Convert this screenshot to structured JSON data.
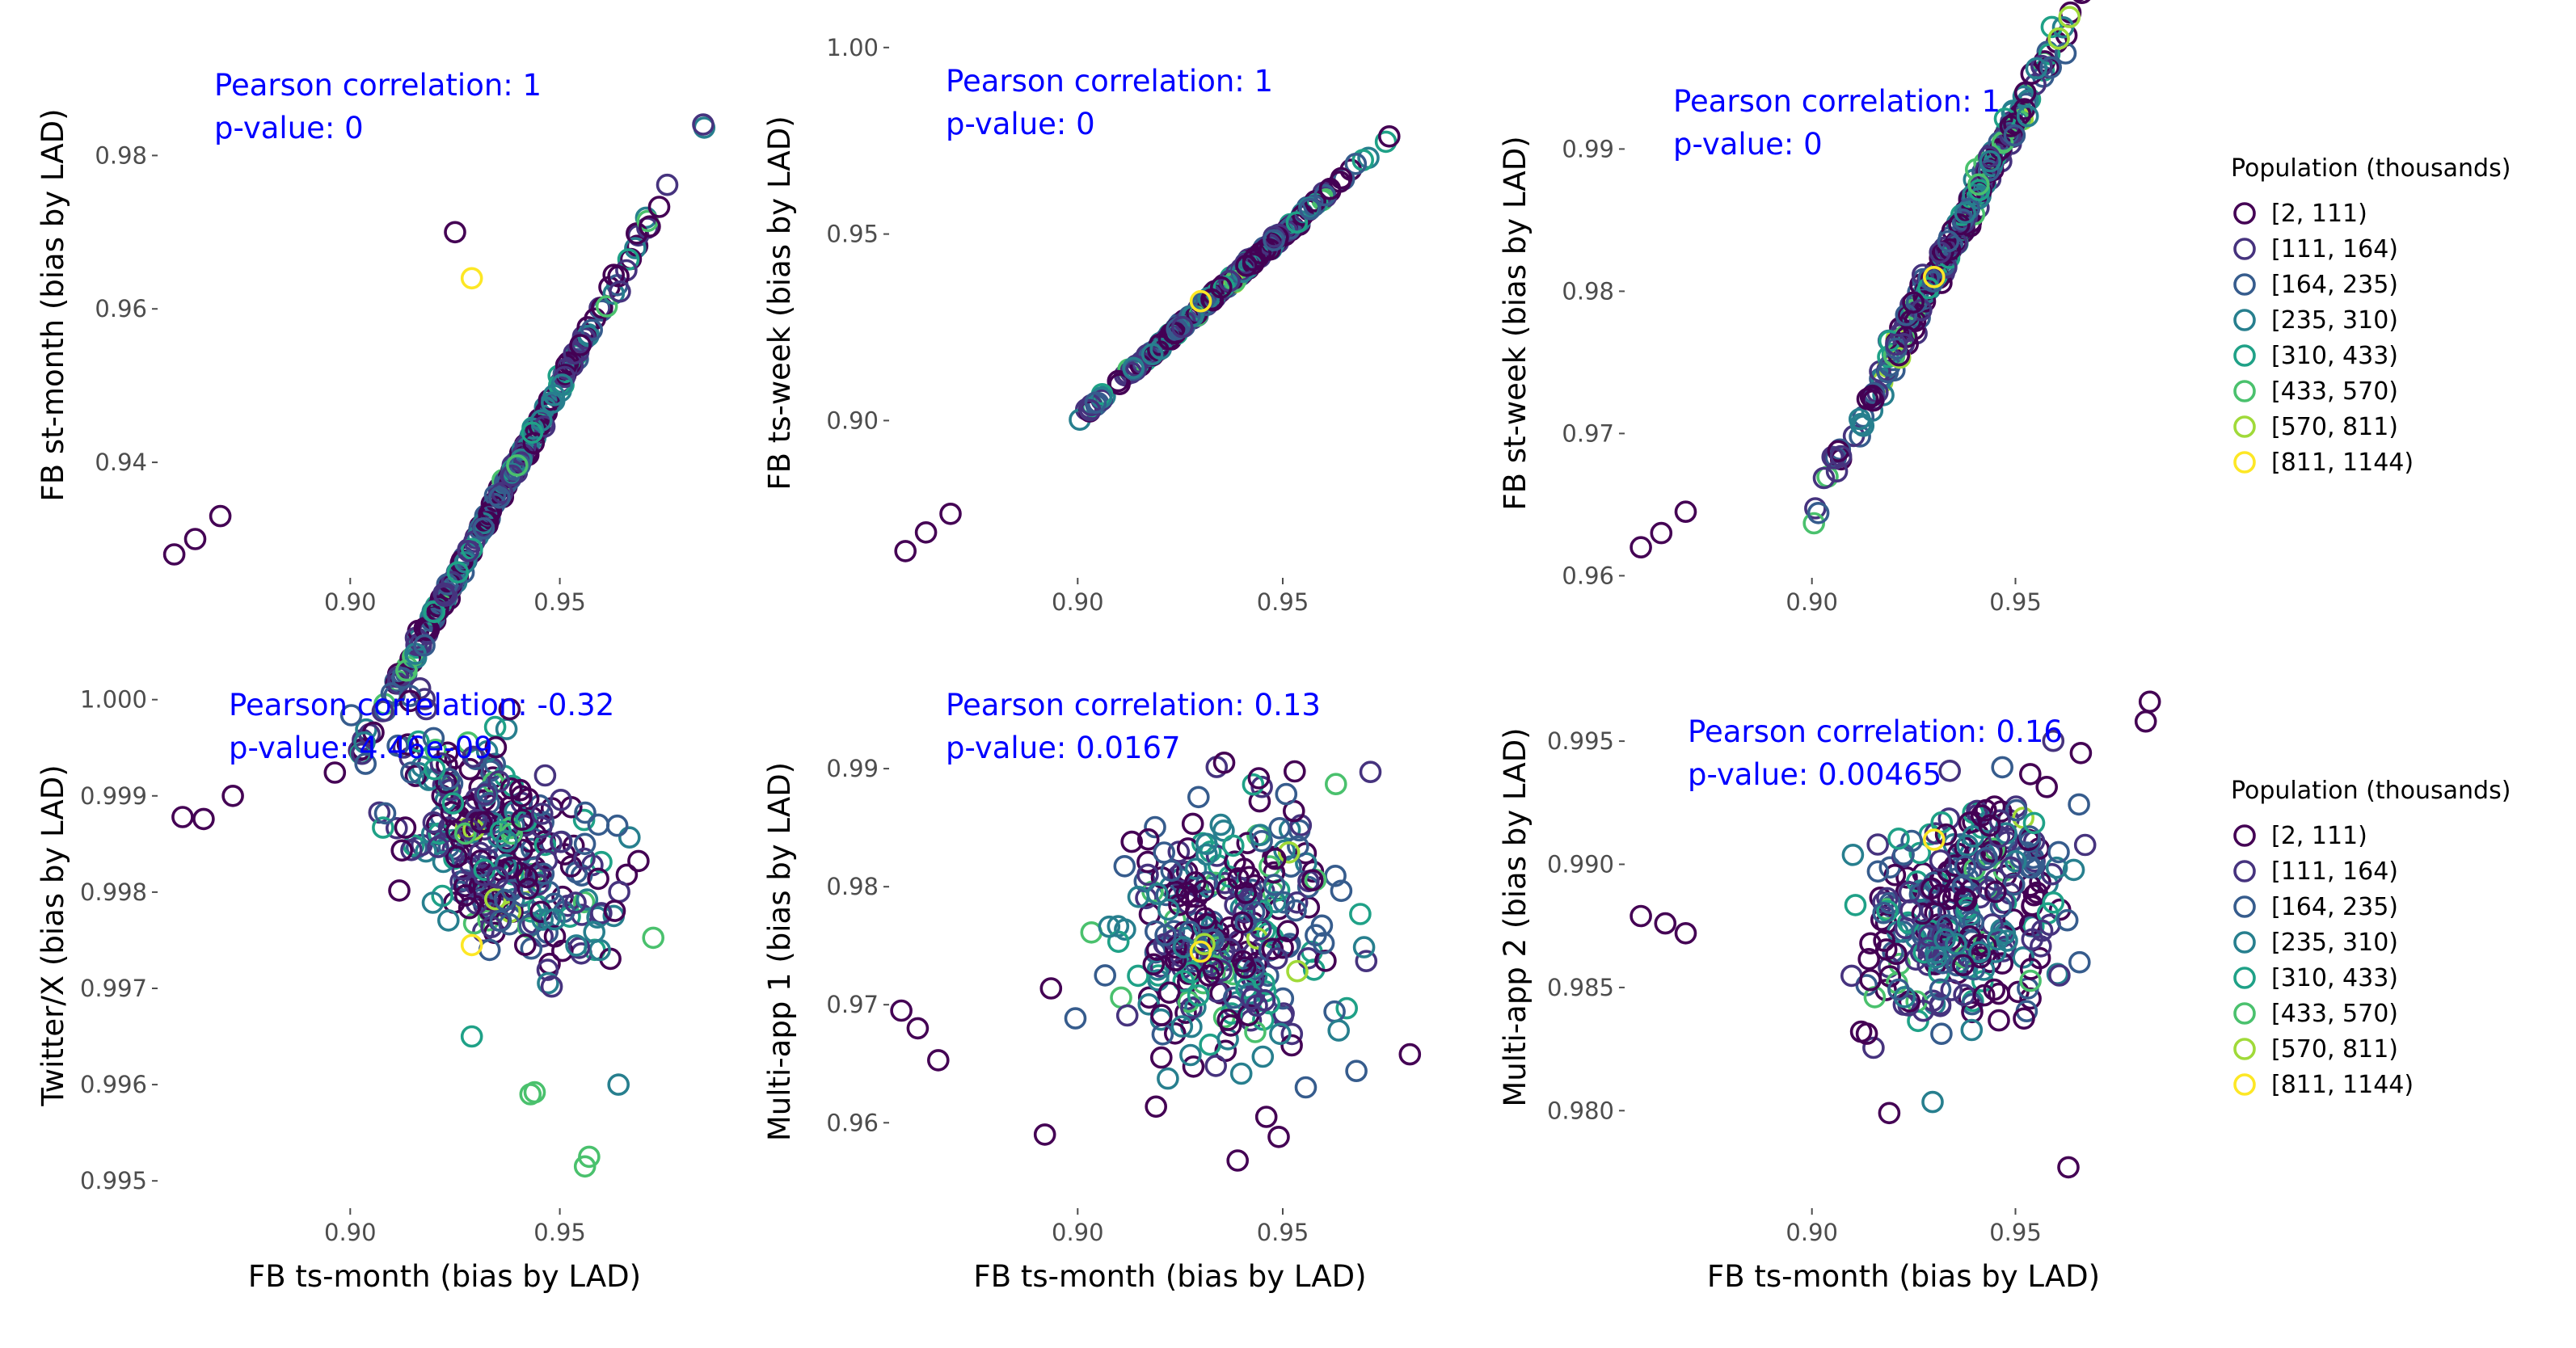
{
  "palette": [
    "#440154",
    "#46337e",
    "#365c8d",
    "#277f8e",
    "#1fa187",
    "#4ac16d",
    "#a0da39",
    "#fde725"
  ],
  "legends": [
    {
      "title": "Population (thousands)",
      "items": [
        "[2, 111)",
        "[111, 164)",
        "[164, 235)",
        "[235, 310)",
        "[310, 433)",
        "[433, 570)",
        "[570, 811)",
        "[811, 1144)"
      ]
    },
    {
      "title": "Population (thousands)",
      "items": [
        "[2, 111)",
        "[111, 164)",
        "[164, 235)",
        "[235, 310)",
        "[310, 433)",
        "[433, 570)",
        "[570, 811)",
        "[811, 1144)"
      ]
    }
  ],
  "chart_data": [
    {
      "type": "scatter",
      "xlabel": "",
      "ylabel": "FB st-month (bias by LAD)",
      "xlim": [
        0.855,
        0.99
      ],
      "ylim": [
        0.926,
        0.995
      ],
      "xticks": [
        {
          "value": 0.9,
          "label": "0.90"
        },
        {
          "value": 0.95,
          "label": "0.95"
        }
      ],
      "yticks": [
        {
          "value": 0.94,
          "label": "0.94"
        },
        {
          "value": 0.96,
          "label": "0.96"
        },
        {
          "value": 0.98,
          "label": "0.98"
        }
      ],
      "annotation": [
        "Pearson correlation:  1",
        "p-value:  0"
      ],
      "trend": {
        "kind": "line",
        "slope": 1.0,
        "intercept": 0.0
      },
      "x_center": 0.935,
      "highlight": [
        {
          "x": 0.929,
          "y": 0.964,
          "group": 7
        }
      ],
      "extra_points": [
        {
          "x": 0.858,
          "y": 0.928
        },
        {
          "x": 0.863,
          "y": 0.93
        },
        {
          "x": 0.869,
          "y": 0.933
        },
        {
          "x": 0.925,
          "y": 0.97
        }
      ]
    },
    {
      "type": "scatter",
      "xlabel": "",
      "ylabel": "FB ts-week (bias by LAD)",
      "xlim": [
        0.855,
        0.99
      ],
      "ylim": [
        0.86,
        1.003
      ],
      "xticks": [
        {
          "value": 0.9,
          "label": "0.90"
        },
        {
          "value": 0.95,
          "label": "0.95"
        }
      ],
      "yticks": [
        {
          "value": 0.9,
          "label": "0.90"
        },
        {
          "value": 0.95,
          "label": "0.95"
        },
        {
          "value": 1.0,
          "label": "1.00"
        }
      ],
      "annotation": [
        "Pearson correlation:  1",
        "p-value:  0"
      ],
      "trend": {
        "kind": "line",
        "slope": 1.0,
        "intercept": 0.0
      },
      "x_center": 0.935,
      "highlight": [
        {
          "x": 0.93,
          "y": 0.932,
          "group": 7
        }
      ],
      "extra_points": [
        {
          "x": 0.858,
          "y": 0.865
        },
        {
          "x": 0.863,
          "y": 0.87
        },
        {
          "x": 0.869,
          "y": 0.875
        }
      ]
    },
    {
      "type": "scatter",
      "xlabel": "",
      "ylabel": "FB st-week (bias by LAD)",
      "xlim": [
        0.855,
        0.99
      ],
      "ylim": [
        0.959,
        0.9965
      ],
      "xticks": [
        {
          "value": 0.9,
          "label": "0.90"
        },
        {
          "value": 0.95,
          "label": "0.95"
        }
      ],
      "yticks": [
        {
          "value": 0.96,
          "label": "0.96"
        },
        {
          "value": 0.97,
          "label": "0.97"
        },
        {
          "value": 0.98,
          "label": "0.98"
        },
        {
          "value": 0.99,
          "label": "0.99"
        }
      ],
      "annotation": [
        "Pearson correlation:  1",
        "p-value:  0"
      ],
      "trend": {
        "kind": "line",
        "slope": 0.55,
        "intercept": 0.4695
      },
      "x_center": 0.935,
      "highlight": [
        {
          "x": 0.93,
          "y": 0.981,
          "group": 7
        }
      ],
      "extra_points": [
        {
          "x": 0.858,
          "y": 0.962
        },
        {
          "x": 0.863,
          "y": 0.963
        },
        {
          "x": 0.869,
          "y": 0.9645
        }
      ]
    },
    {
      "type": "scatter",
      "xlabel": "FB ts-month (bias by LAD)",
      "ylabel": "Twitter/X (bias by LAD)",
      "xlim": [
        0.855,
        0.99
      ],
      "ylim": [
        0.9948,
        1.0003
      ],
      "xticks": [
        {
          "value": 0.9,
          "label": "0.90"
        },
        {
          "value": 0.95,
          "label": "0.95"
        }
      ],
      "yticks": [
        {
          "value": 0.995,
          "label": "0.995"
        },
        {
          "value": 0.996,
          "label": "0.996"
        },
        {
          "value": 0.997,
          "label": "0.997"
        },
        {
          "value": 0.998,
          "label": "0.998"
        },
        {
          "value": 0.999,
          "label": "0.999"
        },
        {
          "value": 1.0,
          "label": "1.000"
        }
      ],
      "annotation": [
        "Pearson correlation:  -0.32",
        "p-value:  4.46e-09"
      ],
      "trend": {
        "kind": "cloud",
        "center_x": 0.935,
        "center_y": 0.9985,
        "slope": -0.02,
        "sd_x": 0.013,
        "sd_y": 0.00055
      },
      "x_center": 0.935,
      "highlight": [
        {
          "x": 0.929,
          "y": 0.99745,
          "group": 7
        }
      ],
      "extra_points": [
        {
          "x": 0.86,
          "y": 0.99878
        },
        {
          "x": 0.865,
          "y": 0.99876
        },
        {
          "x": 0.872,
          "y": 0.999
        },
        {
          "x": 0.938,
          "y": 0.9999
        },
        {
          "x": 0.956,
          "y": 0.99515,
          "group": 5
        },
        {
          "x": 0.957,
          "y": 0.99525,
          "group": 5
        },
        {
          "x": 0.943,
          "y": 0.9959,
          "group": 5
        },
        {
          "x": 0.944,
          "y": 0.99592,
          "group": 5
        },
        {
          "x": 0.929,
          "y": 0.9965,
          "group": 4
        },
        {
          "x": 0.964,
          "y": 0.996,
          "group": 3
        }
      ]
    },
    {
      "type": "scatter",
      "xlabel": "FB ts-month (bias by LAD)",
      "ylabel": "Multi-app 1 (bias by LAD)",
      "xlim": [
        0.855,
        0.99
      ],
      "ylim": [
        0.9555,
        0.9935
      ],
      "xticks": [
        {
          "value": 0.9,
          "label": "0.90"
        },
        {
          "value": 0.95,
          "label": "0.95"
        }
      ],
      "yticks": [
        {
          "value": 0.96,
          "label": "0.96"
        },
        {
          "value": 0.97,
          "label": "0.97"
        },
        {
          "value": 0.98,
          "label": "0.98"
        },
        {
          "value": 0.99,
          "label": "0.99"
        }
      ],
      "annotation": [
        "Pearson correlation:  0.13",
        "p-value:  0.0167"
      ],
      "trend": {
        "kind": "cloud",
        "center_x": 0.936,
        "center_y": 0.9762,
        "slope": 0.05,
        "sd_x": 0.013,
        "sd_y": 0.0052
      },
      "x_center": 0.935,
      "highlight": [
        {
          "x": 0.93,
          "y": 0.9745,
          "group": 7
        }
      ],
      "extra_points": [
        {
          "x": 0.857,
          "y": 0.9695
        },
        {
          "x": 0.861,
          "y": 0.968
        },
        {
          "x": 0.866,
          "y": 0.9653
        },
        {
          "x": 0.892,
          "y": 0.959
        },
        {
          "x": 0.939,
          "y": 0.9568
        },
        {
          "x": 0.946,
          "y": 0.9605
        },
        {
          "x": 0.949,
          "y": 0.9588
        },
        {
          "x": 0.981,
          "y": 0.9658
        }
      ]
    },
    {
      "type": "scatter",
      "xlabel": "FB ts-month (bias by LAD)",
      "ylabel": "Multi-app 2 (bias by LAD)",
      "xlim": [
        0.855,
        0.99
      ],
      "ylim": [
        0.9785,
        0.9972
      ],
      "xticks": [
        {
          "value": 0.9,
          "label": "0.90"
        },
        {
          "value": 0.95,
          "label": "0.95"
        }
      ],
      "yticks": [
        {
          "value": 0.98,
          "label": "0.980"
        },
        {
          "value": 0.985,
          "label": "0.985"
        },
        {
          "value": 0.99,
          "label": "0.990"
        },
        {
          "value": 0.995,
          "label": "0.995"
        }
      ],
      "annotation": [
        "Pearson correlation:  0.16",
        "p-value:  0.00465"
      ],
      "trend": {
        "kind": "cloud",
        "center_x": 0.937,
        "center_y": 0.9882,
        "slope": 0.045,
        "sd_x": 0.013,
        "sd_y": 0.0024
      },
      "x_center": 0.935,
      "highlight": [
        {
          "x": 0.93,
          "y": 0.991,
          "group": 7
        }
      ],
      "extra_points": [
        {
          "x": 0.858,
          "y": 0.9879
        },
        {
          "x": 0.864,
          "y": 0.9876
        },
        {
          "x": 0.869,
          "y": 0.9872
        },
        {
          "x": 0.919,
          "y": 0.9799
        },
        {
          "x": 0.963,
          "y": 0.9777
        },
        {
          "x": 0.983,
          "y": 0.9966
        },
        {
          "x": 0.982,
          "y": 0.9958
        }
      ]
    }
  ]
}
